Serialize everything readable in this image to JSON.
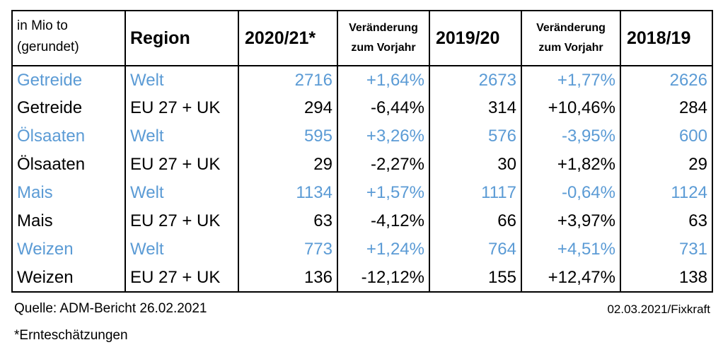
{
  "table": {
    "headers": {
      "unit_line1": "in Mio to",
      "unit_line2": "(gerundet)",
      "region": "Region",
      "y2020_21": "2020/21*",
      "change1_line1": "Veränderung",
      "change1_line2": "zum Vorjahr",
      "y2019_20": "2019/20",
      "change2_line1": "Veränderung",
      "change2_line2": "zum Vorjahr",
      "y2018_19": "2018/19"
    },
    "rows": [
      {
        "crop": "Getreide",
        "region": "Welt",
        "v2020_21": "2716",
        "chg1": "+1,64%",
        "v2019_20": "2673",
        "chg2": "+1,77%",
        "v2018_19": "2626"
      },
      {
        "crop": "Getreide",
        "region": "EU 27 + UK",
        "v2020_21": "294",
        "chg1": "-6,44%",
        "v2019_20": "314",
        "chg2": "+10,46%",
        "v2018_19": "284"
      },
      {
        "crop": "Ölsaaten",
        "region": "Welt",
        "v2020_21": "595",
        "chg1": "+3,26%",
        "v2019_20": "576",
        "chg2": "-3,95%",
        "v2018_19": "600"
      },
      {
        "crop": "Ölsaaten",
        "region": "EU 27 + UK",
        "v2020_21": "29",
        "chg1": "-2,27%",
        "v2019_20": "30",
        "chg2": "+1,82%",
        "v2018_19": "29"
      },
      {
        "crop": "Mais",
        "region": "Welt",
        "v2020_21": "1134",
        "chg1": "+1,57%",
        "v2019_20": "1117",
        "chg2": "-0,64%",
        "v2018_19": "1124"
      },
      {
        "crop": "Mais",
        "region": "EU 27 + UK",
        "v2020_21": "63",
        "chg1": "-4,12%",
        "v2019_20": "66",
        "chg2": "+3,97%",
        "v2018_19": "63"
      },
      {
        "crop": "Weizen",
        "region": "Welt",
        "v2020_21": "773",
        "chg1": "+1,24%",
        "v2019_20": "764",
        "chg2": "+4,51%",
        "v2018_19": "731"
      },
      {
        "crop": "Weizen",
        "region": "EU 27 + UK",
        "v2020_21": "136",
        "chg1": "-12,12%",
        "v2019_20": "155",
        "chg2": "+12,47%",
        "v2018_19": "138"
      }
    ]
  },
  "footer": {
    "source": "Quelle: ADM-Bericht 26.02.2021",
    "credit": "02.03.2021/Fixkraft",
    "footnote": "*Ernteschätzungen"
  },
  "colors": {
    "world_text": "#5b9bd5",
    "eu_text": "#000000",
    "shaded_row": "#f2f2f2",
    "border": "#000000"
  }
}
